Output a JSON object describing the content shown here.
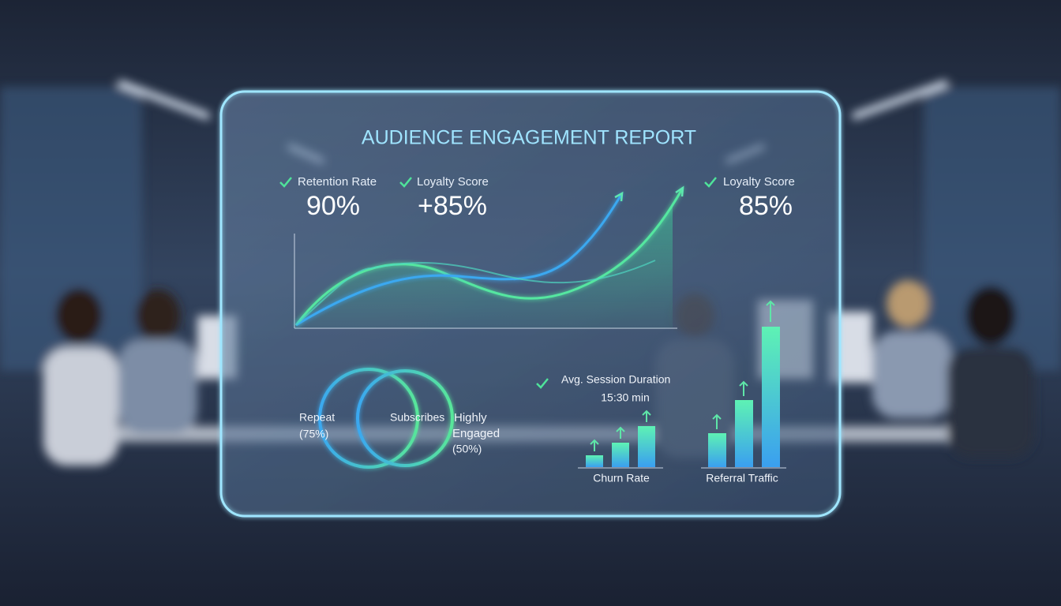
{
  "title": "AUDIENCE ENGAGEMENT REPORT",
  "metrics": [
    {
      "label": "Retention Rate",
      "value": "90%"
    },
    {
      "label": "Loyalty Score",
      "value": "+85%"
    },
    {
      "label": "Loyalty Score",
      "value": "85%"
    }
  ],
  "venn": {
    "left": [
      "Repeat",
      "(75%)"
    ],
    "center": "Subscribes",
    "right": [
      "Highly",
      "Engaged",
      "(50%)"
    ]
  },
  "session": {
    "label": "Avg. Session Duration",
    "value": "15:30 min"
  },
  "bar_groups": [
    "Churn Rate",
    "Referral Traffic"
  ]
}
